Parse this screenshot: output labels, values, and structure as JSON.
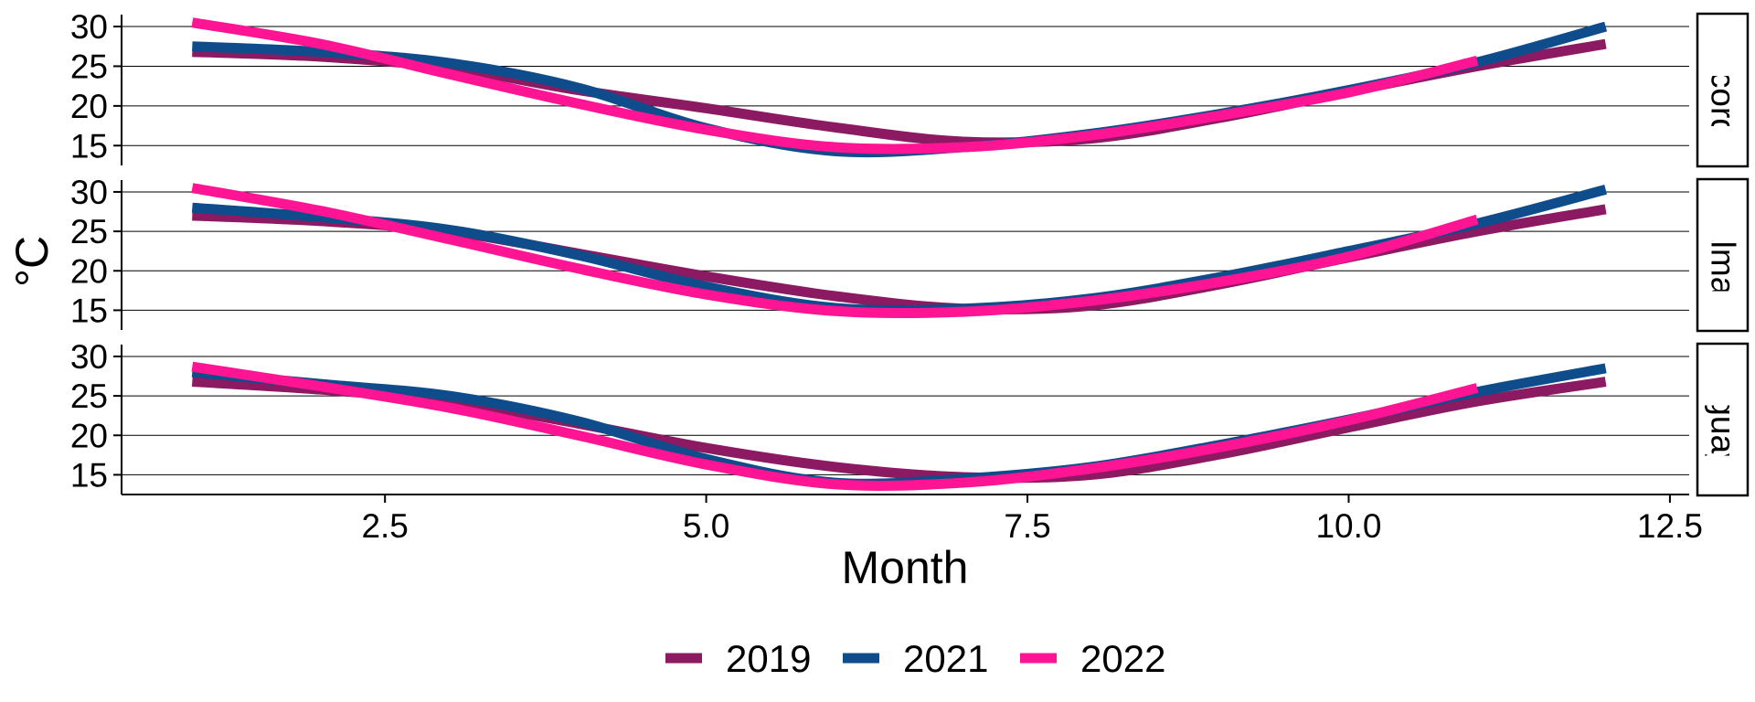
{
  "chart_data": {
    "type": "line",
    "title": "",
    "xlabel": "Month",
    "ylabel": "°C",
    "xlim": [
      0.45,
      12.65
    ],
    "ylim": [
      12.5,
      31.5
    ],
    "x_ticks": [
      2.5,
      5.0,
      7.5,
      10.0,
      12.5
    ],
    "x_tick_labels": [
      "2.5",
      "5.0",
      "7.5",
      "10.0",
      "12.5"
    ],
    "y_ticks": [
      15,
      20,
      25,
      30
    ],
    "y_tick_labels": [
      "15",
      "20",
      "25",
      "30"
    ],
    "grid": "horizontal major lines",
    "legend_position": "bottom",
    "series_styles": [
      {
        "name": "2019",
        "color": "#8B1A62"
      },
      {
        "name": "2021",
        "color": "#0F4C8C"
      },
      {
        "name": "2022",
        "color": "#FF1493"
      }
    ],
    "panels": [
      {
        "strip_label": "concordia",
        "series": [
          {
            "name": "2019",
            "x": [
              1,
              2,
              3,
              4,
              5,
              6,
              7,
              8,
              9,
              10,
              11,
              12
            ],
            "values": [
              26.8,
              26.2,
              24.8,
              22.0,
              19.7,
              17.3,
              15.5,
              15.9,
              18.5,
              21.8,
              25.0,
              27.8
            ]
          },
          {
            "name": "2021",
            "x": [
              1,
              2,
              3,
              4,
              5,
              6,
              7,
              8,
              9,
              10,
              11,
              12
            ],
            "values": [
              27.5,
              26.8,
              25.4,
              22.3,
              17.2,
              14.3,
              14.8,
              16.5,
              19.0,
              22.0,
              25.5,
              30.0
            ]
          },
          {
            "name": "2022",
            "x": [
              1,
              2,
              3,
              4,
              5,
              6,
              7,
              8,
              9,
              10,
              11
            ],
            "values": [
              30.5,
              27.8,
              24.0,
              20.3,
              17.0,
              14.8,
              14.8,
              16.3,
              18.8,
              21.7,
              25.7
            ]
          }
        ]
      },
      {
        "strip_label": "palmar",
        "series": [
          {
            "name": "2019",
            "x": [
              1,
              2,
              3,
              4,
              5,
              6,
              7,
              8,
              9,
              10,
              11,
              12
            ],
            "values": [
              27.0,
              26.3,
              25.0,
              22.2,
              19.3,
              16.8,
              15.2,
              15.6,
              18.3,
              21.7,
              25.0,
              27.8
            ]
          },
          {
            "name": "2021",
            "x": [
              1,
              2,
              3,
              4,
              5,
              6,
              7,
              8,
              9,
              10,
              11,
              12
            ],
            "values": [
              28.0,
              26.8,
              25.2,
              22.0,
              18.0,
              15.3,
              15.2,
              16.5,
              19.2,
              22.5,
              26.0,
              30.3
            ]
          },
          {
            "name": "2022",
            "x": [
              1,
              2,
              3,
              4,
              5,
              6,
              7,
              8,
              9,
              10,
              11
            ],
            "values": [
              30.5,
              27.6,
              24.0,
              20.3,
              17.0,
              14.9,
              14.8,
              16.2,
              18.6,
              21.8,
              26.5
            ]
          }
        ]
      },
      {
        "strip_label": "gualeguaychu",
        "series": [
          {
            "name": "2019",
            "x": [
              1,
              2,
              3,
              4,
              5,
              6,
              7,
              8,
              9,
              10,
              11,
              12
            ],
            "values": [
              26.8,
              25.8,
              24.3,
              21.5,
              18.4,
              16.0,
              14.7,
              15.0,
              17.6,
              21.0,
              24.3,
              26.8
            ]
          },
          {
            "name": "2021",
            "x": [
              1,
              2,
              3,
              4,
              5,
              6,
              7,
              8,
              9,
              10,
              11,
              12
            ],
            "values": [
              28.0,
              26.5,
              25.0,
              21.8,
              17.0,
              14.0,
              14.5,
              16.0,
              18.8,
              22.0,
              25.5,
              28.5
            ]
          },
          {
            "name": "2022",
            "x": [
              1,
              2,
              3,
              4,
              5,
              6,
              7,
              8,
              9,
              10,
              11
            ],
            "values": [
              28.7,
              26.2,
              23.5,
              20.0,
              16.3,
              13.8,
              14.0,
              15.8,
              18.5,
              21.9,
              26.0
            ]
          }
        ]
      }
    ]
  }
}
